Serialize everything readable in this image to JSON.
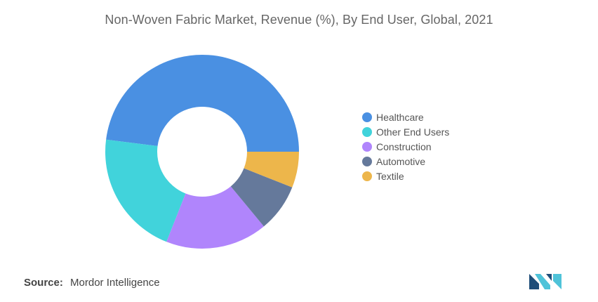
{
  "chart_data": {
    "type": "pie",
    "title": "Non-Woven Fabric Market, Revenue (%), By End User, Global, 2021",
    "donut": true,
    "legend_position": "right",
    "series": [
      {
        "name": "Healthcare",
        "value": 48,
        "color": "#4A90E2"
      },
      {
        "name": "Other End Users",
        "value": 21,
        "color": "#41D3DB"
      },
      {
        "name": "Construction",
        "value": 17,
        "color": "#B085FC"
      },
      {
        "name": "Automotive",
        "value": 8,
        "color": "#65799B"
      },
      {
        "name": "Textile",
        "value": 6,
        "color": "#EDB64B"
      }
    ]
  },
  "source": {
    "label": "Source:",
    "text": "Mordor Intelligence"
  },
  "logo": {
    "icon": "mordor-intelligence-logo",
    "colors": [
      "#1F4E79",
      "#4FC3D9"
    ]
  }
}
